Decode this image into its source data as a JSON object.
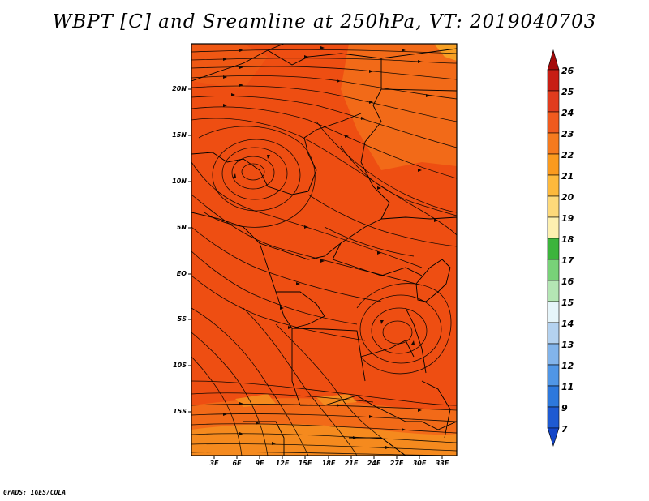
{
  "title": "WBPT [C] and Sreamline at 250hPa, VT: 2019040703",
  "credit": "GrADS: IGES/COLA",
  "map": {
    "lat_labels": [
      "20N",
      "15N",
      "10N",
      "5N",
      "EQ",
      "5S",
      "10S",
      "15S"
    ],
    "lon_labels": [
      "3E",
      "6E",
      "9E",
      "12E",
      "15E",
      "18E",
      "21E",
      "24E",
      "27E",
      "30E",
      "33E"
    ],
    "field_colors": {
      "dark_red": "#e83a12",
      "red_orange": "#ee4e12",
      "orange": "#f26a18",
      "light_orange": "#f58a1e",
      "amber": "#f7a024"
    }
  },
  "colorbar": {
    "levels": [
      "26",
      "25",
      "24",
      "23",
      "22",
      "21",
      "20",
      "19",
      "18",
      "17",
      "16",
      "15",
      "14",
      "13",
      "12",
      "11",
      "9",
      "7"
    ],
    "colors": [
      "#a50a0a",
      "#c81e14",
      "#e13c1e",
      "#f05a1e",
      "#f57a1e",
      "#fa9a1e",
      "#fdb93c",
      "#fdd97a",
      "#fdf0b0",
      "#3cb43c",
      "#78d278",
      "#b4e6b4",
      "#e6f5fa",
      "#b4d2f0",
      "#82b4eb",
      "#5096e6",
      "#2d78dc",
      "#1e5ad2",
      "#1446c8"
    ]
  }
}
